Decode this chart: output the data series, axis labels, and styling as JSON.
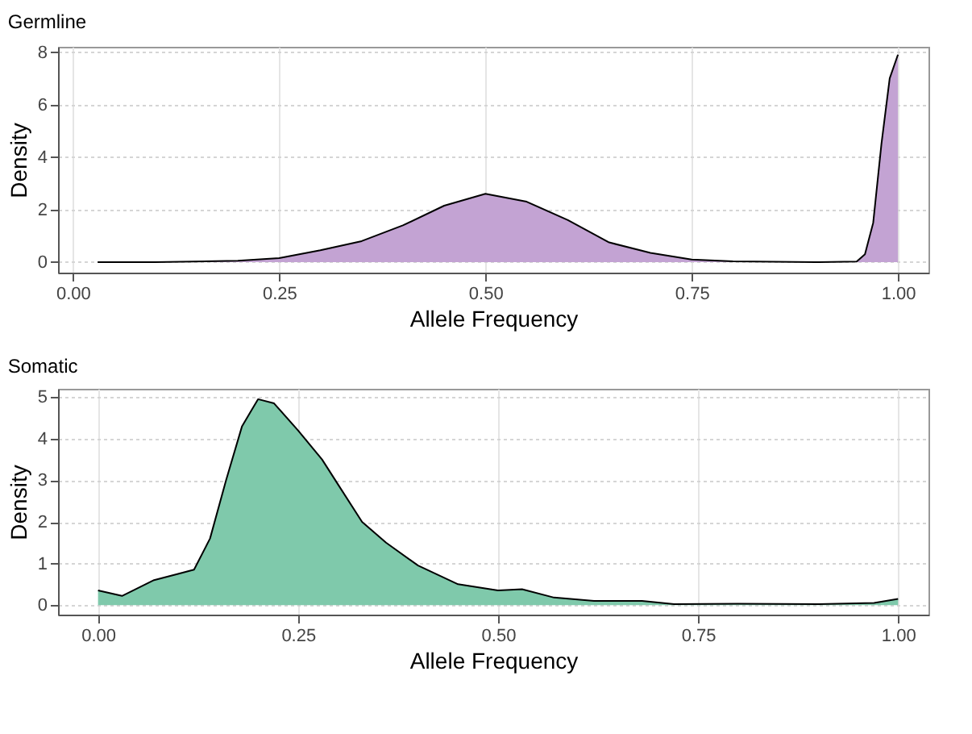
{
  "chart_data": [
    {
      "type": "area",
      "title": "Germline",
      "xlabel": "Allele Frequency",
      "ylabel": "Density",
      "xlim": [
        -0.018,
        1.037
      ],
      "ylim": [
        -0.4,
        8.2
      ],
      "xticks": [
        {
          "value": 0,
          "label": "0.00"
        },
        {
          "value": 0.25,
          "label": "0.25"
        },
        {
          "value": 0.5,
          "label": "0.50"
        },
        {
          "value": 0.75,
          "label": "0.75"
        },
        {
          "value": 1,
          "label": "1.00"
        }
      ],
      "yticks": [
        0,
        2,
        4,
        6,
        8
      ],
      "grid": true,
      "series": [
        {
          "color": "#c3a3d3",
          "x": [
            0.03,
            0.1,
            0.2,
            0.25,
            0.3,
            0.35,
            0.4,
            0.45,
            0.5,
            0.55,
            0.6,
            0.65,
            0.7,
            0.75,
            0.8,
            0.9,
            0.95,
            0.96,
            0.97,
            0.98,
            0.99,
            1.0
          ],
          "values": [
            0,
            0,
            0.05,
            0.15,
            0.45,
            0.8,
            1.4,
            2.15,
            2.6,
            2.3,
            1.6,
            0.75,
            0.35,
            0.1,
            0.03,
            0,
            0.02,
            0.3,
            1.5,
            4.5,
            7,
            7.9
          ]
        }
      ]
    },
    {
      "type": "area",
      "title": "Somatic",
      "xlabel": "Allele Frequency",
      "ylabel": "Density",
      "xlim": [
        -0.05,
        1.038
      ],
      "ylim": [
        -0.23,
        5.2
      ],
      "xticks": [
        {
          "value": 0,
          "label": "0.00"
        },
        {
          "value": 0.25,
          "label": "0.25"
        },
        {
          "value": 0.5,
          "label": "0.50"
        },
        {
          "value": 0.75,
          "label": "0.75"
        },
        {
          "value": 1,
          "label": "1.00"
        }
      ],
      "yticks": [
        0,
        1,
        2,
        3,
        4,
        5
      ],
      "grid": true,
      "series": [
        {
          "color": "#7fc9ab",
          "x": [
            0,
            0.03,
            0.07,
            0.1,
            0.12,
            0.14,
            0.16,
            0.18,
            0.2,
            0.22,
            0.25,
            0.28,
            0.3,
            0.33,
            0.36,
            0.4,
            0.45,
            0.5,
            0.53,
            0.57,
            0.62,
            0.68,
            0.72,
            0.8,
            0.9,
            0.97,
            1.0
          ],
          "values": [
            0.35,
            0.22,
            0.6,
            0.75,
            0.85,
            1.6,
            3.0,
            4.3,
            4.95,
            4.85,
            4.2,
            3.5,
            2.9,
            2.0,
            1.5,
            0.95,
            0.5,
            0.35,
            0.38,
            0.18,
            0.1,
            0.1,
            0.02,
            0.03,
            0.02,
            0.05,
            0.15
          ]
        }
      ]
    }
  ]
}
